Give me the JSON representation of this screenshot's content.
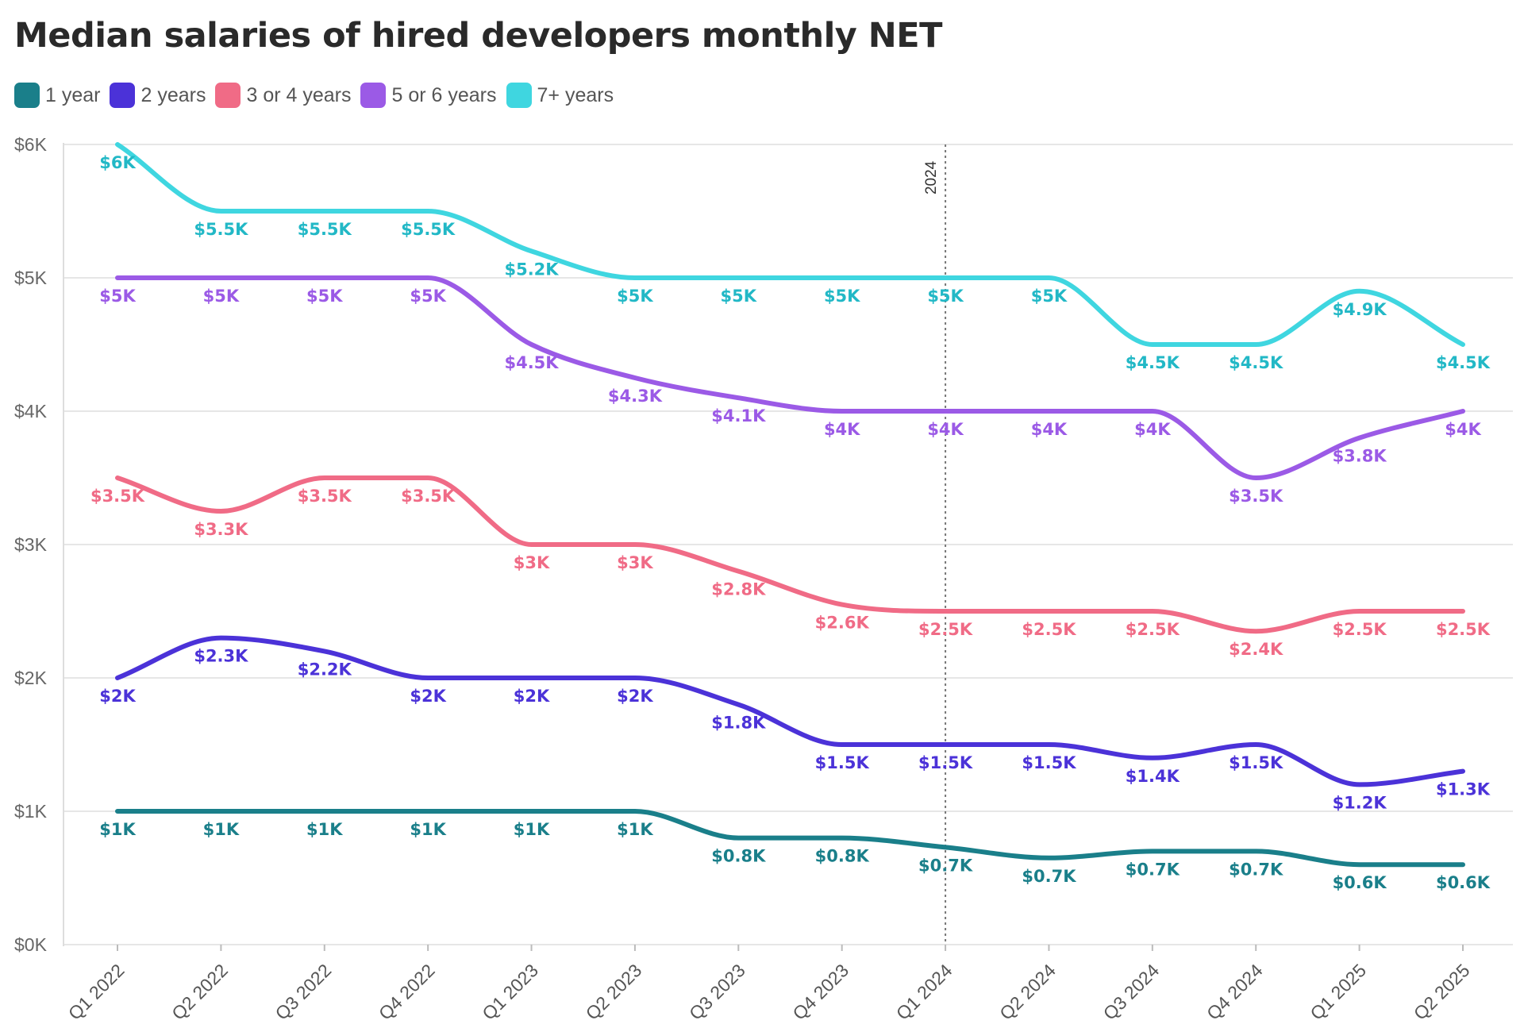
{
  "chart_data": {
    "type": "line",
    "title": "Median salaries of hired developers monthly NET",
    "xlabel": "",
    "ylabel": "",
    "ylim": [
      0,
      6000
    ],
    "y_ticks": [
      {
        "value": 0,
        "label": "$0K"
      },
      {
        "value": 1000,
        "label": "$1K"
      },
      {
        "value": 2000,
        "label": "$2K"
      },
      {
        "value": 3000,
        "label": "$3K"
      },
      {
        "value": 4000,
        "label": "$4K"
      },
      {
        "value": 5000,
        "label": "$5K"
      },
      {
        "value": 6000,
        "label": "$6K"
      }
    ],
    "categories": [
      "Q1 2022",
      "Q2 2022",
      "Q3 2022",
      "Q4 2022",
      "Q1 2023",
      "Q2 2023",
      "Q3 2023",
      "Q4 2023",
      "Q1 2024",
      "Q2 2024",
      "Q3 2024",
      "Q4 2024",
      "Q1 2025",
      "Q2 2025"
    ],
    "grid": true,
    "legend_position": "top-left",
    "annotation": {
      "label": "2024",
      "category": "Q1 2024",
      "style": "dotted vertical line"
    },
    "series": [
      {
        "name": "1 year",
        "color": "#1a7f8a",
        "values": [
          1000,
          1000,
          1000,
          1000,
          1000,
          1000,
          800,
          800,
          730,
          650,
          700,
          700,
          600,
          600
        ],
        "labels": [
          "$1K",
          "$1K",
          "$1K",
          "$1K",
          "$1K",
          "$1K",
          "$0.8K",
          "$0.8K",
          "$0.7K",
          "$0.7K",
          "$0.7K",
          "$0.7K",
          "$0.6K",
          "$0.6K"
        ]
      },
      {
        "name": "2 years",
        "color": "#4b32d8",
        "values": [
          2000,
          2300,
          2200,
          2000,
          2000,
          2000,
          1800,
          1500,
          1500,
          1500,
          1400,
          1500,
          1200,
          1300
        ],
        "labels": [
          "$2K",
          "$2.3K",
          "$2.2K",
          "$2K",
          "$2K",
          "$2K",
          "$1.8K",
          "$1.5K",
          "$1.5K",
          "$1.5K",
          "$1.4K",
          "$1.5K",
          "$1.2K",
          "$1.3K"
        ]
      },
      {
        "name": "3 or 4 years",
        "color": "#f06b86",
        "values": [
          3500,
          3250,
          3500,
          3500,
          3000,
          3000,
          2800,
          2550,
          2500,
          2500,
          2500,
          2350,
          2500,
          2500
        ],
        "labels": [
          "$3.5K",
          "$3.3K",
          "$3.5K",
          "$3.5K",
          "$3K",
          "$3K",
          "$2.8K",
          "$2.6K",
          "$2.5K",
          "$2.5K",
          "$2.5K",
          "$2.4K",
          "$2.5K",
          "$2.5K"
        ]
      },
      {
        "name": "5 or 6 years",
        "color": "#9b5ae6",
        "values": [
          5000,
          5000,
          5000,
          5000,
          4500,
          4250,
          4100,
          4000,
          4000,
          4000,
          4000,
          3500,
          3800,
          4000
        ],
        "labels": [
          "$5K",
          "$5K",
          "$5K",
          "$5K",
          "$4.5K",
          "$4.3K",
          "$4.1K",
          "$4K",
          "$4K",
          "$4K",
          "$4K",
          "$3.5K",
          "$3.8K",
          "$4K"
        ]
      },
      {
        "name": "7+ years",
        "color": "#3fd6e0",
        "label_color": "#22b8c6",
        "values": [
          6000,
          5500,
          5500,
          5500,
          5200,
          5000,
          5000,
          5000,
          5000,
          5000,
          4500,
          4500,
          4900,
          4500
        ],
        "labels": [
          "$6K",
          "$5.5K",
          "$5.5K",
          "$5.5K",
          "$5.2K",
          "$5K",
          "$5K",
          "$5K",
          "$5K",
          "$5K",
          "$4.5K",
          "$4.5K",
          "$4.9K",
          "$4.5K"
        ]
      }
    ]
  }
}
